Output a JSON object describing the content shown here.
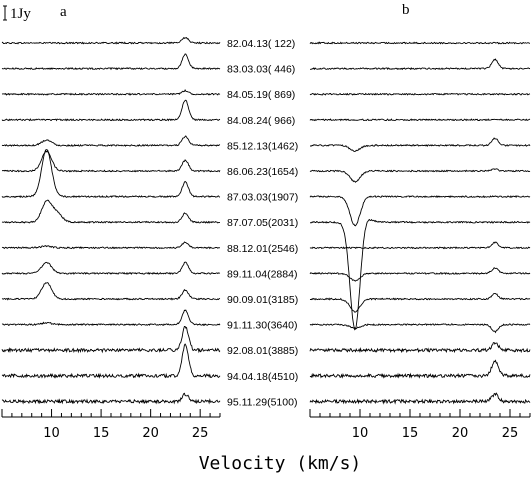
{
  "chart_data": {
    "type": "line",
    "xlabel": "Velocity (km/s)",
    "xlim": [
      5,
      27
    ],
    "xticks": [
      10,
      15,
      20,
      25
    ],
    "scale_bar_label": "1Jy",
    "panels": [
      {
        "label": "a",
        "component_centers_kms": [
          9.5,
          10.5,
          23.5
        ]
      },
      {
        "label": "b",
        "component_centers_kms": [
          9.5,
          10.5,
          23.5
        ]
      }
    ],
    "epochs": [
      "82.04.13( 122)",
      "83.03.03( 446)",
      "84.05.19( 869)",
      "84.08.24( 966)",
      "85.12.13(1462)",
      "86.06.23(1654)",
      "87.03.03(1907)",
      "87.07.05(2031)",
      "88.12.01(2546)",
      "89.11.04(2884)",
      "90.09.01(3185)",
      "91.11.30(3640)",
      "92.08.01(3885)",
      "94.04.18(4510)",
      "95.11.29(5100)"
    ],
    "panel_a_peaks_jy": [
      [
        0,
        0,
        0.3
      ],
      [
        0,
        0,
        0.8
      ],
      [
        0,
        0,
        0.2
      ],
      [
        0,
        0,
        1.1
      ],
      [
        0.3,
        0,
        0.5
      ],
      [
        1.1,
        0,
        0.6
      ],
      [
        2.6,
        0,
        0.8
      ],
      [
        1.1,
        0.5,
        0.5
      ],
      [
        0.1,
        0,
        0.3
      ],
      [
        0.6,
        0,
        0.6
      ],
      [
        0.9,
        0,
        0.5
      ],
      [
        0.1,
        0,
        0.8
      ],
      [
        0,
        0,
        1.3
      ],
      [
        0,
        0,
        1.7
      ],
      [
        0,
        0,
        0.4
      ]
    ],
    "panel_b_peaks_jy": [
      [
        0,
        0,
        0
      ],
      [
        0,
        0,
        0.5
      ],
      [
        0,
        0,
        0
      ],
      [
        0,
        0,
        0
      ],
      [
        -0.3,
        0,
        0.4
      ],
      [
        -0.6,
        0,
        0.1
      ],
      [
        -1.6,
        0,
        0
      ],
      [
        -6.0,
        0.3,
        0
      ],
      [
        0,
        0,
        0.3
      ],
      [
        -0.4,
        0,
        0.3
      ],
      [
        -0.7,
        0,
        0.3
      ],
      [
        -0.2,
        0,
        -0.4
      ],
      [
        0,
        0,
        0.4
      ],
      [
        0,
        0,
        0.8
      ],
      [
        0,
        0,
        0.4
      ]
    ]
  }
}
